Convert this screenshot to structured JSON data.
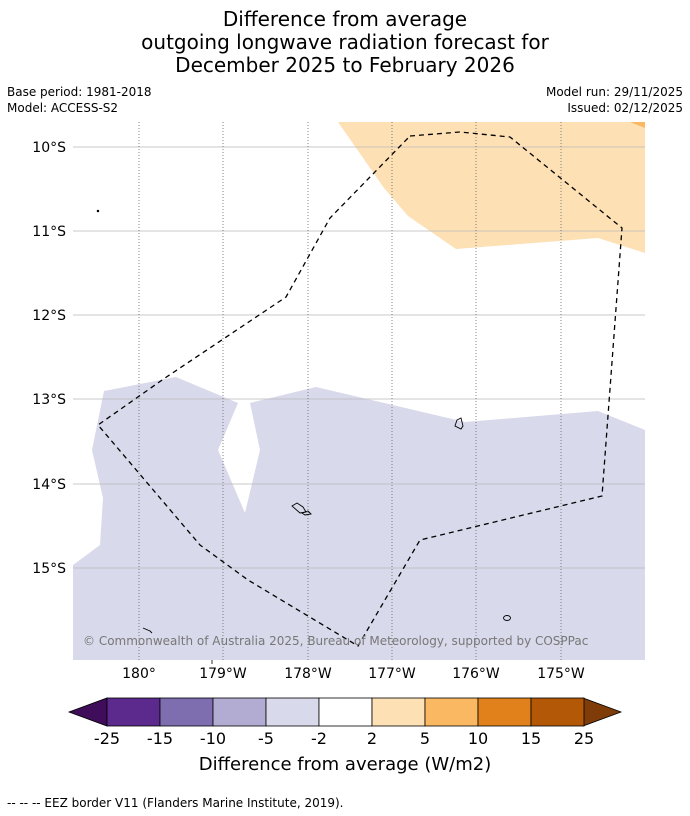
{
  "title": {
    "line1": "Difference from average",
    "line2": "outgoing longwave radiation forecast for",
    "line3": "December 2025 to February 2026"
  },
  "meta": {
    "base_period": "Base period: 1981-2018",
    "model": "Model: ACCESS-S2",
    "model_run": "Model run: 29/11/2025",
    "issued": "Issued: 02/12/2025"
  },
  "map": {
    "lat_labels": [
      "10°S",
      "11°S",
      "12°S",
      "13°S",
      "14°S",
      "15°S"
    ],
    "lon_labels": [
      "180°",
      "179°W",
      "178°W",
      "177°W",
      "176°W",
      "175°W"
    ],
    "copyright": "© Commonwealth of Australia 2025, Bureau of Meteorology, supported by COSPPac"
  },
  "colorbar": {
    "ticks": [
      "-25",
      "-15",
      "-10",
      "-5",
      "-2",
      "2",
      "5",
      "10",
      "15",
      "25"
    ],
    "colors": [
      "#3f0d5a",
      "#5b2a8c",
      "#7e6eaf",
      "#b2abd2",
      "#d8d9ea",
      "#ffffff",
      "#fde0b4",
      "#fbb862",
      "#e1811b",
      "#b35806",
      "#7f3b08"
    ],
    "label": "Difference from average (W/m2)"
  },
  "colors": {
    "negative_anomaly": "#d8d9ea",
    "positive_anomaly": "#fde0b4"
  },
  "legend": {
    "eez_text": "--  --  -- EEZ border V11 (Flanders Marine Institute, 2019)."
  }
}
